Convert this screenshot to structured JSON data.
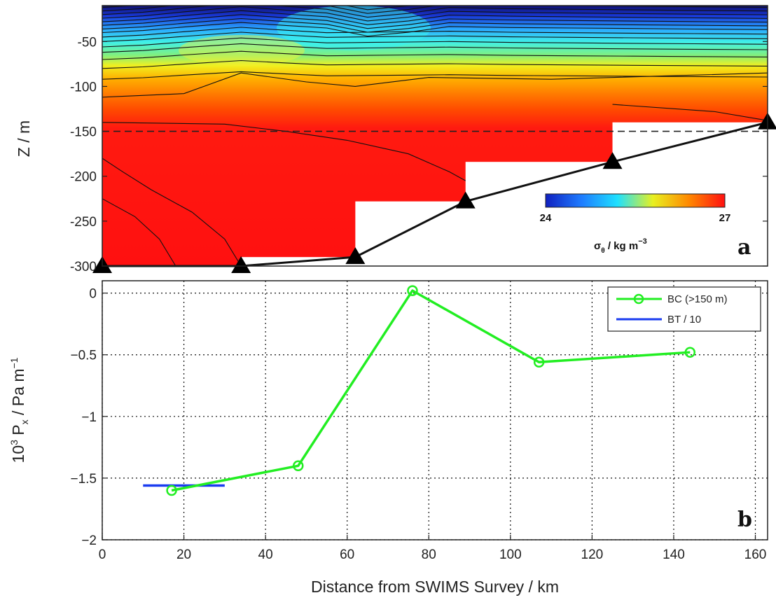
{
  "chart_data": [
    {
      "panel": "a",
      "type": "heatmap",
      "ylabel": "Z / m",
      "xlim": [
        0,
        163
      ],
      "ylim": [
        -300,
        -10
      ],
      "y_ticks": [
        -50,
        -100,
        -150,
        -200,
        -250,
        -300
      ],
      "reference_depth": -150,
      "stations": [
        {
          "x": 0,
          "z": -300
        },
        {
          "x": 34,
          "z": -300
        },
        {
          "x": 62,
          "z": -290
        },
        {
          "x": 89,
          "z": -228
        },
        {
          "x": 125,
          "z": -184
        },
        {
          "x": 163,
          "z": -140
        }
      ],
      "colorbar": {
        "label": "σθ / kg m⁻³",
        "min_label": "24",
        "max_label": "27",
        "colors": [
          "#1020c0",
          "#1e7cff",
          "#1ee0ff",
          "#e8f020",
          "#ff8800",
          "#ff1010"
        ]
      }
    },
    {
      "panel": "b",
      "type": "line",
      "xlabel": "Distance from SWIMS Survey / km",
      "ylabel": "10³ Pₓ / Pa m⁻¹",
      "xlim": [
        0,
        163
      ],
      "ylim": [
        -2,
        0.1
      ],
      "x_ticks": [
        "0",
        "20",
        "40",
        "60",
        "80",
        "100",
        "120",
        "140",
        "160"
      ],
      "y_ticks": [
        "0",
        "-0.5",
        "-1",
        "-1.5",
        "-2"
      ],
      "grid": true,
      "legend_position": "top-right",
      "series": [
        {
          "name": "BC (>150 m)",
          "color": "#22ee22",
          "x": [
            17,
            48,
            76,
            107,
            144
          ],
          "y": [
            -1.6,
            -1.4,
            0.02,
            -0.56,
            -0.48
          ]
        },
        {
          "name": "BT / 10",
          "color": "#1a3cf0",
          "x": [
            10,
            30
          ],
          "y": [
            -1.56,
            -1.56
          ]
        }
      ]
    }
  ],
  "labels": {
    "panel_a": "a",
    "panel_b": "b",
    "a_ylabel_text": "Z / m",
    "b_ylabel_main": "10",
    "b_ylabel_sup": "3",
    "b_ylabel_p": " P",
    "b_ylabel_sub": "x",
    "b_ylabel_rest": " / Pa m",
    "b_ylabel_sup2": "−1",
    "xlabel": "Distance from SWIMS Survey / km",
    "cb_sigma": "σ",
    "cb_sub": "θ",
    "cb_rest": " / kg m",
    "cb_sup": "−3",
    "cb_min": "24",
    "cb_max": "27",
    "legend_bc": "BC (>150 m)",
    "legend_bt": "BT / 10"
  }
}
